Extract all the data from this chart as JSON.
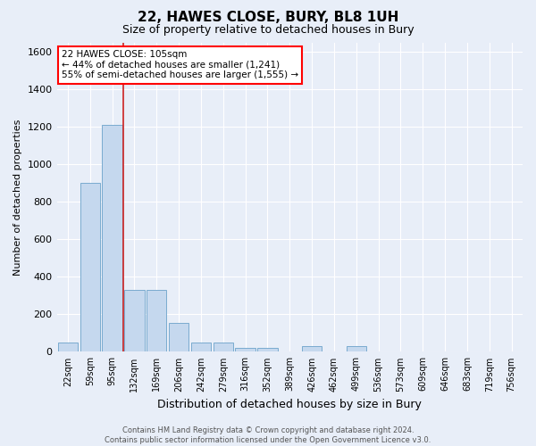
{
  "title": "22, HAWES CLOSE, BURY, BL8 1UH",
  "subtitle": "Size of property relative to detached houses in Bury",
  "xlabel": "Distribution of detached houses by size in Bury",
  "ylabel": "Number of detached properties",
  "categories": [
    "22sqm",
    "59sqm",
    "95sqm",
    "132sqm",
    "169sqm",
    "206sqm",
    "242sqm",
    "279sqm",
    "316sqm",
    "352sqm",
    "389sqm",
    "426sqm",
    "462sqm",
    "499sqm",
    "536sqm",
    "573sqm",
    "609sqm",
    "646sqm",
    "683sqm",
    "719sqm",
    "756sqm"
  ],
  "values": [
    50,
    900,
    1210,
    330,
    330,
    155,
    50,
    50,
    20,
    20,
    0,
    30,
    0,
    30,
    0,
    0,
    0,
    0,
    0,
    0,
    0
  ],
  "bar_color": "#c5d8ee",
  "bar_edge_color": "#7aabcf",
  "background_color": "#e8eef8",
  "grid_color": "#d0d8e8",
  "red_line_x": 2.48,
  "ylim": [
    0,
    1650
  ],
  "yticks": [
    0,
    200,
    400,
    600,
    800,
    1000,
    1200,
    1400,
    1600
  ],
  "footer_line1": "Contains HM Land Registry data © Crown copyright and database right 2024.",
  "footer_line2": "Contains public sector information licensed under the Open Government Licence v3.0."
}
